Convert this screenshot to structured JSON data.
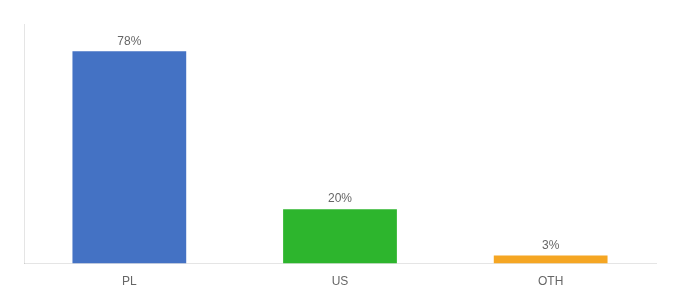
{
  "chart_data": {
    "type": "bar",
    "categories": [
      "PL",
      "US",
      "OTH"
    ],
    "values": [
      78,
      20,
      3
    ],
    "value_labels": [
      "78%",
      "20%",
      "3%"
    ],
    "colors": [
      "#4472c4",
      "#2db52d",
      "#f5a623"
    ],
    "ylim": [
      0,
      88
    ],
    "data_labels": true,
    "tick_labels": "x",
    "grid": false
  }
}
